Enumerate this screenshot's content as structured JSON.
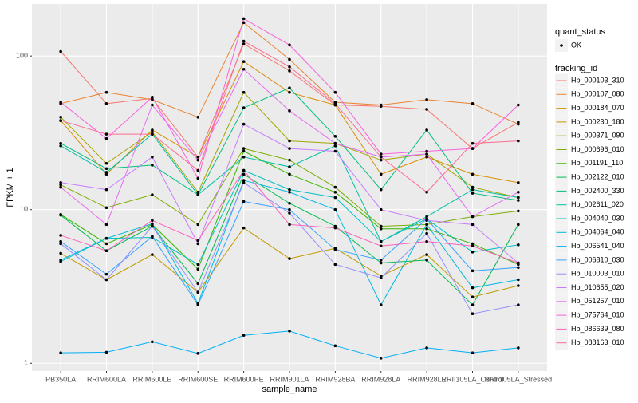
{
  "chart_data": {
    "type": "line",
    "log_y": true,
    "grid": true,
    "x_label": "sample_name",
    "y_label": "FPKM + 1",
    "categories": [
      "PB350LA",
      "RRIM600LA",
      "RRIM600LE",
      "RRIM600SE",
      "RRIM600PE",
      "RRIM901LA",
      "RRIM928BA",
      "RRIM928LA",
      "RRIM928LE",
      "RRII105LA_Control",
      "RRII105LA_Stressed"
    ],
    "ylim": [
      0.89,
      218
    ],
    "yticks": [
      1,
      10,
      100
    ],
    "point_color": "#000000",
    "shape_legend_title": "quant_status",
    "shape_legend_levels": [
      "OK"
    ],
    "legend_title": "tracking_id",
    "series": [
      {
        "name": "Hb_000103_310",
        "color": "#F8766D",
        "values": [
          107,
          49,
          53,
          22,
          120,
          80,
          48,
          47,
          45,
          25,
          37
        ]
      },
      {
        "name": "Hb_000107_080",
        "color": "#EA8331",
        "values": [
          49,
          58,
          52,
          40,
          165,
          95,
          50,
          48,
          52,
          49,
          36
        ]
      },
      {
        "name": "Hb_000184_070",
        "color": "#D89000",
        "values": [
          38,
          17,
          33,
          22,
          92,
          58,
          48,
          17,
          22,
          17,
          15
        ]
      },
      {
        "name": "Hb_000230_180",
        "color": "#C09B00",
        "values": [
          5.2,
          3.5,
          5.1,
          2.9,
          7.6,
          4.8,
          5.6,
          3.7,
          5.1,
          2.7,
          3.2
        ]
      },
      {
        "name": "Hb_000371_090",
        "color": "#A3A500",
        "values": [
          40,
          20,
          32,
          13,
          58,
          28,
          27,
          21,
          23,
          14,
          12
        ]
      },
      {
        "name": "Hb_000696_010",
        "color": "#7CAE00",
        "values": [
          14.5,
          10.3,
          12.5,
          8,
          25,
          21,
          14,
          7.8,
          8,
          9,
          9.8
        ]
      },
      {
        "name": "Hb_001191_110",
        "color": "#39B600",
        "values": [
          9.3,
          6,
          8,
          4.1,
          24,
          17,
          13,
          7.5,
          7.5,
          6,
          4.4
        ]
      },
      {
        "name": "Hb_002122_010",
        "color": "#00BB4E",
        "values": [
          9.2,
          5.4,
          7.8,
          3.3,
          17,
          11,
          7.8,
          4.5,
          4.7,
          2.4,
          8
        ]
      },
      {
        "name": "Hb_002400_330",
        "color": "#00BF7D",
        "values": [
          27,
          18.5,
          19.5,
          12.5,
          46,
          62,
          30,
          13.5,
          33,
          12.8,
          11.5
        ]
      },
      {
        "name": "Hb_002611_020",
        "color": "#00C1A3",
        "values": [
          26,
          17.5,
          31,
          12.5,
          22,
          19,
          26,
          6.2,
          9,
          13.5,
          12
        ]
      },
      {
        "name": "Hb_004040_030",
        "color": "#00BFC4",
        "values": [
          4.6,
          6.5,
          6.6,
          4.4,
          18,
          13.5,
          12,
          6.2,
          8.7,
          5.3,
          5.9
        ]
      },
      {
        "name": "Hb_004064_040",
        "color": "#00BAE0",
        "values": [
          4.7,
          6.5,
          8.1,
          2.45,
          15.5,
          13,
          10,
          2.4,
          8,
          3.1,
          3.5
        ]
      },
      {
        "name": "Hb_006541_040",
        "color": "#00B0F6",
        "values": [
          1.17,
          1.18,
          1.38,
          1.16,
          1.52,
          1.62,
          1.3,
          1.08,
          1.26,
          1.17,
          1.26
        ]
      },
      {
        "name": "Hb_006810_030",
        "color": "#35A2FF",
        "values": [
          6.2,
          3.8,
          6.7,
          2.4,
          11.3,
          10,
          5.5,
          4.7,
          8.7,
          4,
          4.2
        ]
      },
      {
        "name": "Hb_010003_010",
        "color": "#9590FF",
        "values": [
          6,
          3.5,
          7.8,
          2.9,
          15,
          9.5,
          4.4,
          3.6,
          7,
          2.1,
          2.4
        ]
      },
      {
        "name": "Hb_010655_020",
        "color": "#C77CFF",
        "values": [
          15,
          13.5,
          22,
          6,
          36,
          25,
          24,
          10,
          8.5,
          8,
          4.5
        ]
      },
      {
        "name": "Hb_051257_010",
        "color": "#E76BF3",
        "values": [
          14,
          8,
          48,
          21,
          82,
          44,
          27,
          22,
          23,
          9,
          13
        ]
      },
      {
        "name": "Hb_075764_010",
        "color": "#FA62DB",
        "values": [
          50,
          29,
          54,
          16,
          175,
          118,
          58,
          23,
          24,
          25,
          48
        ]
      },
      {
        "name": "Hb_086639_080",
        "color": "#FF62BC",
        "values": [
          6.8,
          5.4,
          8.5,
          6.3,
          18,
          8,
          7.6,
          5.8,
          6.2,
          5.8,
          4.5
        ]
      },
      {
        "name": "Hb_088163_010",
        "color": "#FF6C91",
        "values": [
          38,
          31,
          31,
          18,
          125,
          85,
          49,
          22,
          13,
          27,
          28
        ]
      }
    ]
  }
}
